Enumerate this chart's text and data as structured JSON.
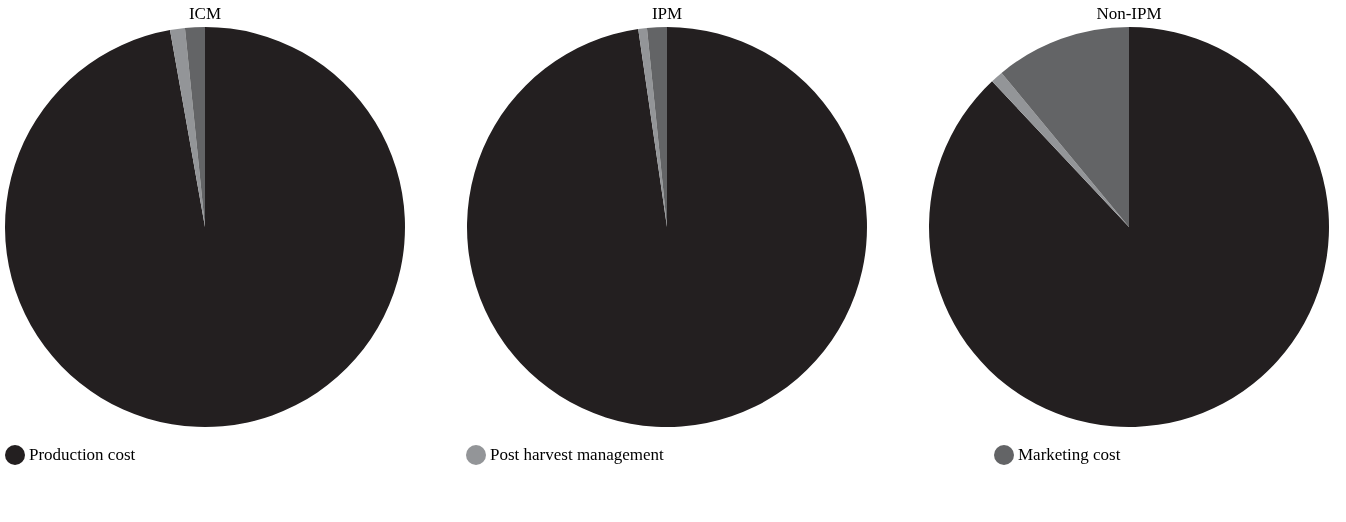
{
  "chart_data": [
    {
      "type": "pie",
      "title": "ICM",
      "categories": [
        "Production cost",
        "Post harvest management",
        "Marketing cost"
      ],
      "values": [
        97.2,
        1.2,
        1.6
      ],
      "colors": [
        "#231f20",
        "#939598",
        "#636466"
      ],
      "legend": "bottom"
    },
    {
      "type": "pie",
      "title": "IPM",
      "values": [
        97.7,
        0.7,
        1.6
      ],
      "colors": [
        "#231f20",
        "#939598",
        "#636466"
      ]
    },
    {
      "type": "pie",
      "title": "Non-IPM",
      "values": [
        88,
        1,
        11
      ],
      "colors": [
        "#231f20",
        "#939598",
        "#636466"
      ]
    }
  ]
}
